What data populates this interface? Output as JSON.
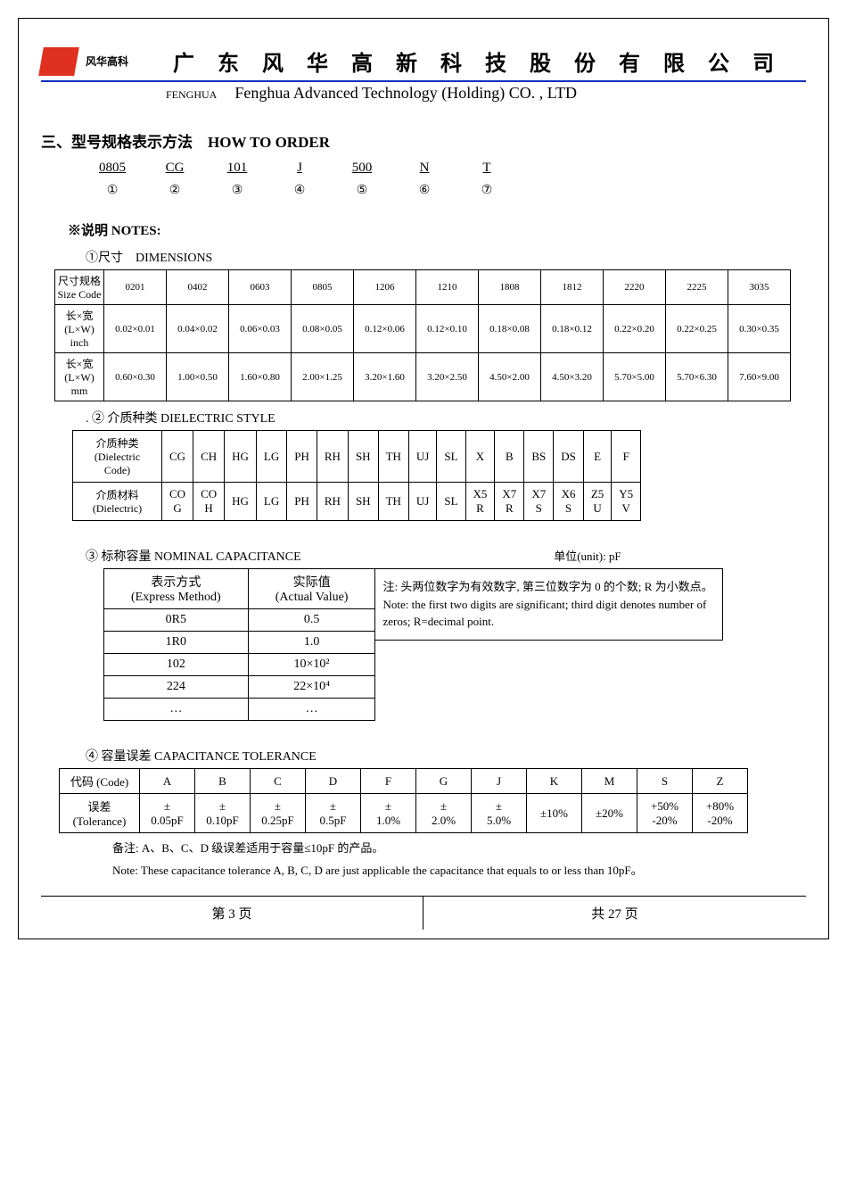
{
  "header": {
    "brand_cn": "风华高科",
    "company_cn": "广 东 风 华 高 新 科 技 股 份 有 限 公 司",
    "fenghua_en": "FENGHUA",
    "company_en": "Fenghua Advanced Technology (Holding) CO. , LTD"
  },
  "section3": {
    "title": "三、型号规格表示方法　HOW TO ORDER",
    "order_parts": [
      "0805",
      "CG",
      "101",
      "J",
      "500",
      "N",
      "T"
    ],
    "order_nums": [
      "①",
      "②",
      "③",
      "④",
      "⑤",
      "⑥",
      "⑦"
    ],
    "notes_label": "※说明 NOTES:"
  },
  "dimensions": {
    "label": "①尺寸　DIMENSIONS",
    "row_headers": [
      "尺寸规格\nSize Code",
      "长×宽\n(L×W)\ninch",
      "长×宽\n(L×W)\nmm"
    ],
    "codes": [
      "0201",
      "0402",
      "0603",
      "0805",
      "1206",
      "1210",
      "1808",
      "1812",
      "2220",
      "2225",
      "3035"
    ],
    "inch": [
      "0.02×0.01",
      "0.04×0.02",
      "0.06×0.03",
      "0.08×0.05",
      "0.12×0.06",
      "0.12×0.10",
      "0.18×0.08",
      "0.18×0.12",
      "0.22×0.20",
      "0.22×0.25",
      "0.30×0.35"
    ],
    "mm": [
      "0.60×0.30",
      "1.00×0.50",
      "1.60×0.80",
      "2.00×1.25",
      "3.20×1.60",
      "3.20×2.50",
      "4.50×2.00",
      "4.50×3.20",
      "5.70×5.00",
      "5.70×6.30",
      "7.60×9.00"
    ]
  },
  "dielectric": {
    "label": ". ② 介质种类 DIELECTRIC STYLE",
    "row1_h": "介质种类\n(Dielectric Code)",
    "row2_h": "介质材料\n(Dielectric)",
    "codes": [
      "CG",
      "CH",
      "HG",
      "LG",
      "PH",
      "RH",
      "SH",
      "TH",
      "UJ",
      "SL",
      "X",
      "B",
      "BS",
      "DS",
      "E",
      "F"
    ],
    "materials": [
      "CO\nG",
      "CO\nH",
      "HG",
      "LG",
      "PH",
      "RH",
      "SH",
      "TH",
      "UJ",
      "SL",
      "X5\nR",
      "X7\nR",
      "X7\nS",
      "X6\nS",
      "Z5\nU",
      "Y5\nV"
    ]
  },
  "nominal": {
    "label": "③ 标称容量 NOMINAL CAPACITANCE",
    "unit": "单位(unit): pF",
    "headers": [
      "表示方式\n(Express Method)",
      "实际值\n(Actual Value)"
    ],
    "rows": [
      [
        "0R5",
        "0.5"
      ],
      [
        "1R0",
        "1.0"
      ],
      [
        "102",
        "10×10²"
      ],
      [
        "224",
        "22×10⁴"
      ],
      [
        "…",
        "…"
      ]
    ],
    "note_cn": "注: 头两位数字为有效数字, 第三位数字为 0 的个数; R 为小数点。",
    "note_en": "Note: the first two digits are significant; third digit denotes number of zeros; R=decimal point."
  },
  "tolerance": {
    "label": "④ 容量误差 CAPACITANCE TOLERANCE",
    "row1_h": "代码 (Code)",
    "row2_h": "误差\n(Tolerance)",
    "codes": [
      "A",
      "B",
      "C",
      "D",
      "F",
      "G",
      "J",
      "K",
      "M",
      "S",
      "Z"
    ],
    "values": [
      "±\n0.05pF",
      "±\n0.10pF",
      "±\n0.25pF",
      "±\n0.5pF",
      "±\n1.0%",
      "±\n2.0%",
      "±\n5.0%",
      "±10%",
      "±20%",
      "+50%\n-20%",
      "+80%\n-20%"
    ],
    "remark_cn": "备注: A、B、C、D 级误差适用于容量≤10pF 的产品。",
    "remark_en": "Note: These capacitance tolerance A, B, C, D are just applicable the capacitance that equals to or less than 10pF。"
  },
  "footer": {
    "left": "第  3  页",
    "right": "共  27  页"
  }
}
